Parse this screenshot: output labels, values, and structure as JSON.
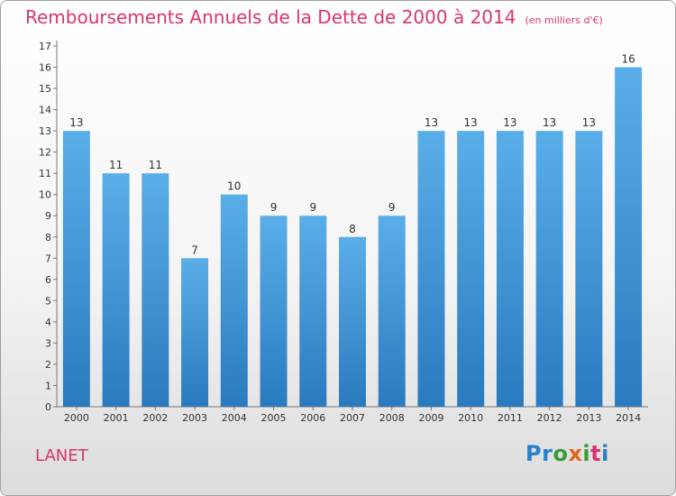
{
  "header": {
    "title": "Remboursements Annuels de la Dette de 2000 à 2014",
    "unit": "(en milliers d'€)"
  },
  "footer": {
    "town": "LANET",
    "logo_letters": [
      {
        "ch": "P",
        "color": "#2a7fcf"
      },
      {
        "ch": "r",
        "color": "#2a7fcf"
      },
      {
        "ch": "o",
        "color": "#3a9a3a"
      },
      {
        "ch": "x",
        "color": "#e0661c"
      },
      {
        "ch": "i",
        "color": "#3a9a3a"
      },
      {
        "ch": "t",
        "color": "#d9346f"
      },
      {
        "ch": "i",
        "color": "#2a7fcf"
      }
    ]
  },
  "chart_data": {
    "type": "bar",
    "title": "Remboursements Annuels de la Dette de 2000 à 2014",
    "subtitle": "(en milliers d'€)",
    "categories": [
      "2000",
      "2001",
      "2002",
      "2003",
      "2004",
      "2005",
      "2006",
      "2007",
      "2008",
      "2009",
      "2010",
      "2011",
      "2012",
      "2013",
      "2014"
    ],
    "values": [
      13,
      11,
      11,
      7,
      10,
      9,
      9,
      8,
      9,
      13,
      13,
      13,
      13,
      13,
      16
    ],
    "ylim": [
      0,
      17
    ],
    "yticks": [
      0,
      1,
      2,
      3,
      4,
      5,
      6,
      7,
      8,
      9,
      10,
      11,
      12,
      13,
      14,
      15,
      16,
      17
    ],
    "grid": false,
    "bar_color_top": "#5aaee8",
    "bar_color_bottom": "#2a7abf",
    "xlabel": "",
    "ylabel": ""
  }
}
